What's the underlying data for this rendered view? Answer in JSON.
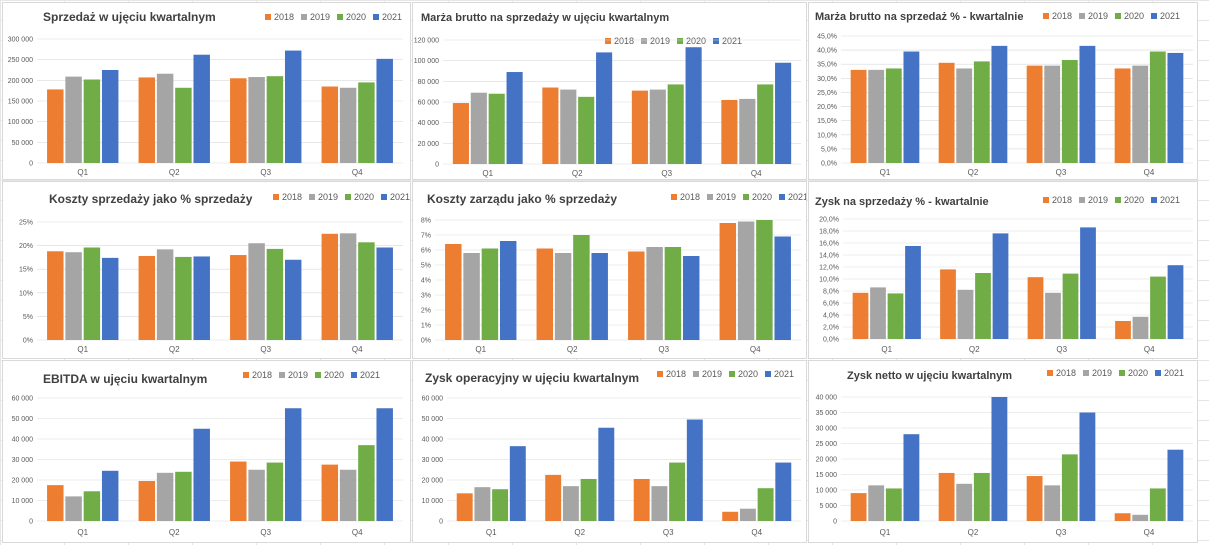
{
  "colors": {
    "2018": "#ed7d31",
    "2019": "#a5a5a5",
    "2020": "#70ad47",
    "2021": "#4472c4",
    "grid": "#d9d9d9"
  },
  "chart_data": [
    {
      "type": "bar",
      "title": "Sprzedaż w ujęciu kwartalnym",
      "categories": [
        "Q1",
        "Q2",
        "Q3",
        "Q4"
      ],
      "yticks": [
        "0",
        "50 000",
        "100 000",
        "150 000",
        "200 000",
        "250 000",
        "300 000"
      ],
      "ylim": [
        0,
        300000
      ],
      "legend": "top-right",
      "series": [
        {
          "name": "2018",
          "values": [
            178000,
            207000,
            205000,
            185000
          ]
        },
        {
          "name": "2019",
          "values": [
            209000,
            216000,
            208000,
            182000
          ]
        },
        {
          "name": "2020",
          "values": [
            202000,
            182000,
            210000,
            195000
          ]
        },
        {
          "name": "2021",
          "values": [
            225000,
            262000,
            272000,
            252000
          ]
        }
      ]
    },
    {
      "type": "bar",
      "title": "Marża brutto na sprzedaży w ujęciu kwartalnym",
      "categories": [
        "Q1",
        "Q2",
        "Q3",
        "Q4"
      ],
      "yticks": [
        "0",
        "20 000",
        "40 000",
        "60 000",
        "80 000",
        "100 000",
        "120 000"
      ],
      "ylim": [
        0,
        120000
      ],
      "legend": "top-right",
      "series": [
        {
          "name": "2018",
          "values": [
            59000,
            74000,
            71000,
            62000
          ]
        },
        {
          "name": "2019",
          "values": [
            69000,
            72000,
            72000,
            63000
          ]
        },
        {
          "name": "2020",
          "values": [
            68000,
            65000,
            77000,
            77000
          ]
        },
        {
          "name": "2021",
          "values": [
            89000,
            108000,
            113000,
            98000
          ]
        }
      ]
    },
    {
      "type": "bar",
      "title": "Marża brutto na sprzedaż % - kwartalnie",
      "categories": [
        "Q1",
        "Q2",
        "Q3",
        "Q4"
      ],
      "yticks": [
        "0,0%",
        "5,0%",
        "10,0%",
        "15,0%",
        "20,0%",
        "25,0%",
        "30,0%",
        "35,0%",
        "40,0%",
        "45,0%"
      ],
      "ylim": [
        0,
        45
      ],
      "legend": "top-right",
      "series": [
        {
          "name": "2018",
          "values": [
            33,
            35.5,
            34.5,
            33.5
          ]
        },
        {
          "name": "2019",
          "values": [
            33,
            33.5,
            34.5,
            34.5
          ]
        },
        {
          "name": "2020",
          "values": [
            33.5,
            36,
            36.5,
            39.5
          ]
        },
        {
          "name": "2021",
          "values": [
            39.5,
            41.5,
            41.5,
            39
          ]
        }
      ]
    },
    {
      "type": "bar",
      "title": "Koszty sprzedaży jako % sprzedaży",
      "categories": [
        "Q1",
        "Q2",
        "Q3",
        "Q4"
      ],
      "yticks": [
        "0%",
        "5%",
        "10%",
        "15%",
        "20%",
        "25%"
      ],
      "ylim": [
        0,
        25
      ],
      "legend": "top-right",
      "series": [
        {
          "name": "2018",
          "values": [
            18.8,
            17.8,
            18,
            22.5
          ]
        },
        {
          "name": "2019",
          "values": [
            18.6,
            19.2,
            20.5,
            22.6
          ]
        },
        {
          "name": "2020",
          "values": [
            19.6,
            17.6,
            19.3,
            20.7
          ]
        },
        {
          "name": "2021",
          "values": [
            17.4,
            17.7,
            17,
            19.6
          ]
        }
      ]
    },
    {
      "type": "bar",
      "title": "Koszty zarządu jako % sprzedaży",
      "categories": [
        "Q1",
        "Q2",
        "Q3",
        "Q4"
      ],
      "yticks": [
        "0%",
        "1%",
        "2%",
        "3%",
        "4%",
        "5%",
        "6%",
        "7%",
        "8%"
      ],
      "ylim": [
        0,
        8
      ],
      "legend": "top-right",
      "series": [
        {
          "name": "2018",
          "values": [
            6.4,
            6.1,
            5.9,
            7.8
          ]
        },
        {
          "name": "2019",
          "values": [
            5.8,
            5.8,
            6.2,
            7.9
          ]
        },
        {
          "name": "2020",
          "values": [
            6.1,
            7,
            6.2,
            8
          ]
        },
        {
          "name": "2021",
          "values": [
            6.6,
            5.8,
            5.6,
            6.9
          ]
        }
      ]
    },
    {
      "type": "bar",
      "title": "Zysk na sprzedaży % - kwartalnie",
      "categories": [
        "Q1",
        "Q2",
        "Q3",
        "Q4"
      ],
      "yticks": [
        "0,0%",
        "2,0%",
        "4,0%",
        "6,0%",
        "8,0%",
        "10,0%",
        "12,0%",
        "14,0%",
        "16,0%",
        "18,0%",
        "20,0%"
      ],
      "ylim": [
        0,
        20
      ],
      "legend": "top-right",
      "series": [
        {
          "name": "2018",
          "values": [
            7.7,
            11.6,
            10.3,
            3
          ]
        },
        {
          "name": "2019",
          "values": [
            8.6,
            8.2,
            7.7,
            3.7
          ]
        },
        {
          "name": "2020",
          "values": [
            7.6,
            11,
            10.9,
            10.4
          ]
        },
        {
          "name": "2021",
          "values": [
            15.5,
            17.6,
            18.6,
            12.3
          ]
        }
      ]
    },
    {
      "type": "bar",
      "title": "EBITDA w ujęciu kwartalnym",
      "categories": [
        "Q1",
        "Q2",
        "Q3",
        "Q4"
      ],
      "yticks": [
        "0",
        "10 000",
        "20 000",
        "30 000",
        "40 000",
        "50 000",
        "60 000"
      ],
      "ylim": [
        0,
        60000
      ],
      "legend": "top-right",
      "series": [
        {
          "name": "2018",
          "values": [
            17500,
            19500,
            29000,
            27500
          ]
        },
        {
          "name": "2019",
          "values": [
            12000,
            23500,
            25000,
            25000
          ]
        },
        {
          "name": "2020",
          "values": [
            14500,
            24000,
            28500,
            37000
          ]
        },
        {
          "name": "2021",
          "values": [
            24500,
            45000,
            55000,
            55000
          ]
        }
      ]
    },
    {
      "type": "bar",
      "title": "Zysk operacyjny w ujęciu kwartalnym",
      "categories": [
        "Q1",
        "Q2",
        "Q3",
        "Q4"
      ],
      "yticks": [
        "0",
        "10 000",
        "20 000",
        "30 000",
        "40 000",
        "50 000",
        "60 000"
      ],
      "ylim": [
        0,
        60000
      ],
      "legend": "top-right",
      "series": [
        {
          "name": "2018",
          "values": [
            13500,
            22500,
            20500,
            4500
          ]
        },
        {
          "name": "2019",
          "values": [
            16500,
            17000,
            17000,
            6000
          ]
        },
        {
          "name": "2020",
          "values": [
            15500,
            20500,
            28500,
            16000
          ]
        },
        {
          "name": "2021",
          "values": [
            36500,
            45500,
            49500,
            28500
          ]
        }
      ]
    },
    {
      "type": "bar",
      "title": "Zysk netto w ujęciu kwartalnym",
      "categories": [
        "Q1",
        "Q2",
        "Q3",
        "Q4"
      ],
      "yticks": [
        "0",
        "5 000",
        "10 000",
        "15 000",
        "20 000",
        "25 000",
        "30 000",
        "35 000",
        "40 000"
      ],
      "ylim": [
        0,
        40000
      ],
      "legend": "top-right",
      "series": [
        {
          "name": "2018",
          "values": [
            9000,
            15500,
            14500,
            2500
          ]
        },
        {
          "name": "2019",
          "values": [
            11500,
            12000,
            11500,
            2000
          ]
        },
        {
          "name": "2020",
          "values": [
            10500,
            15500,
            21500,
            10500
          ]
        },
        {
          "name": "2021",
          "values": [
            28000,
            40000,
            35000,
            23000
          ]
        }
      ]
    }
  ]
}
